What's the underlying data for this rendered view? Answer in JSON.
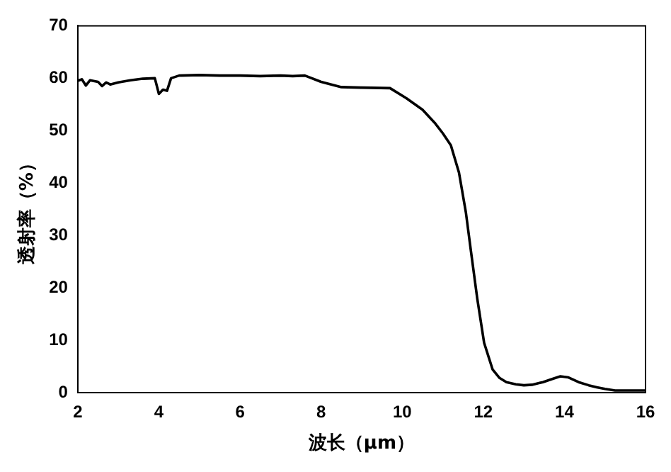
{
  "chart_data": {
    "type": "line",
    "xlabel": "波长（μm）",
    "ylabel": "透射率（%）",
    "xlim": [
      2,
      16
    ],
    "xticks": [
      2,
      4,
      6,
      8,
      10,
      12,
      14,
      16
    ],
    "ylim": [
      0,
      70
    ],
    "yticks": [
      0,
      10,
      20,
      30,
      40,
      50,
      60,
      70
    ],
    "grid": false,
    "legend": false,
    "marker": "none",
    "line_style": "solid",
    "series": [
      {
        "color": "#000000",
        "x": [
          2,
          2.1,
          2.2,
          2.3,
          2.5,
          2.6,
          2.7,
          2.8,
          3,
          3.3,
          3.6,
          3.9,
          4,
          4.1,
          4.2,
          4.3,
          4.5,
          5,
          5.5,
          6,
          6.5,
          7,
          7.3,
          7.6,
          8,
          8.5,
          9,
          9.7,
          10.1,
          10.5,
          10.8,
          11,
          11.2,
          11.4,
          11.57,
          11.7,
          11.85,
          12.02,
          12.23,
          12.4,
          12.57,
          12.8,
          13,
          13.2,
          13.47,
          13.7,
          13.9,
          14.1,
          14.35,
          14.6,
          14.8,
          15,
          15.25,
          15.6,
          16
        ],
        "values": [
          59.5,
          59.8,
          58.6,
          59.6,
          59.3,
          58.5,
          59.2,
          58.8,
          59.2,
          59.6,
          59.9,
          60,
          57,
          57.8,
          57.6,
          60,
          60.5,
          60.6,
          60.5,
          60.5,
          60.4,
          60.5,
          60.4,
          60.5,
          59.3,
          58.3,
          58.2,
          58.1,
          56.2,
          54,
          51.5,
          49.5,
          47.2,
          42,
          34.4,
          26.7,
          18,
          9.5,
          4.4,
          2.8,
          2,
          1.6,
          1.4,
          1.5,
          2,
          2.6,
          3.1,
          2.9,
          2,
          1.4,
          1,
          0.7,
          0.4,
          0.4,
          0.4
        ]
      }
    ]
  }
}
